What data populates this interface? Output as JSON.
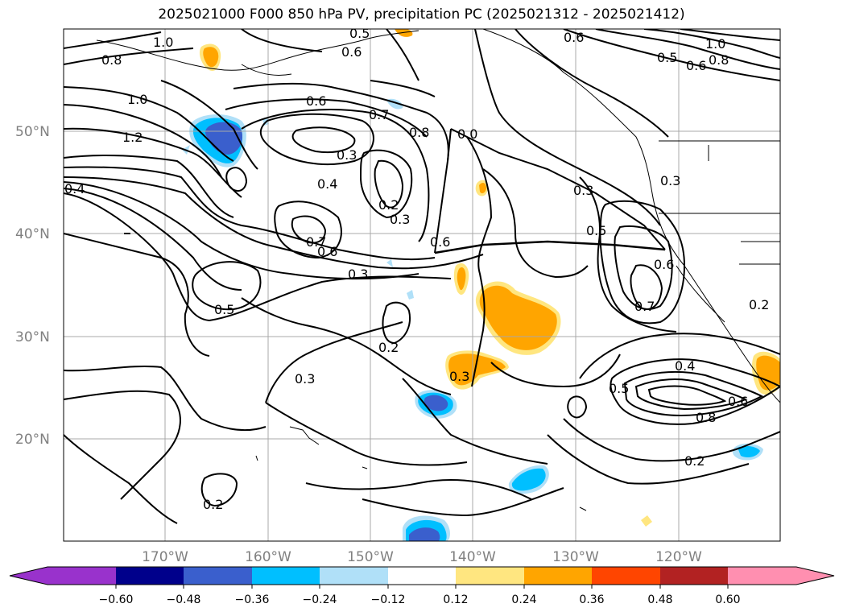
{
  "title": "2025021000 F000 850 hPa PV, precipitation PC (2025021312 - 2025021412)",
  "map": {
    "lat_labels": [
      "50°N",
      "40°N",
      "30°N",
      "20°N"
    ],
    "lon_labels": [
      "170°W",
      "160°W",
      "150°W",
      "140°W",
      "130°W",
      "120°W"
    ],
    "contour_labels": [
      "1.0",
      "0.8",
      "0.5",
      "0.6",
      "0.6",
      "0.5",
      "0.6",
      "0.8",
      "1.0",
      "1.0",
      "1.2",
      "0.4",
      "0.6",
      "0.7",
      "0.8",
      "0.0",
      "0.3",
      "0.4",
      "0.2",
      "0.3",
      "0.6",
      "0.3",
      "0.5",
      "0.3",
      "0.7",
      "0.6",
      "0.6",
      "0.3",
      "0.7",
      "0.5",
      "0.2",
      "0.3",
      "0.3",
      "0.4",
      "0.5",
      "0.6",
      "0.8",
      "0.2",
      "0.2",
      "0.2"
    ],
    "shading_colors": {
      "positive_light": "#ffe680",
      "positive": "#ffa500",
      "negative_light": "#add8f0",
      "negative": "#00bfff",
      "negative_strong": "#3f57d3"
    }
  },
  "colorbar": {
    "ticks": [
      "−0.60",
      "−0.48",
      "−0.36",
      "−0.24",
      "−0.12",
      "0.12",
      "0.24",
      "0.36",
      "0.48",
      "0.60"
    ],
    "colors": [
      "#9932cc",
      "#00008b",
      "#3a5fcd",
      "#00bfff",
      "#b0e0f8",
      "#ffffff",
      "#ffe680",
      "#ffa500",
      "#ff4500",
      "#b22222",
      "#ff8fb0"
    ]
  }
}
